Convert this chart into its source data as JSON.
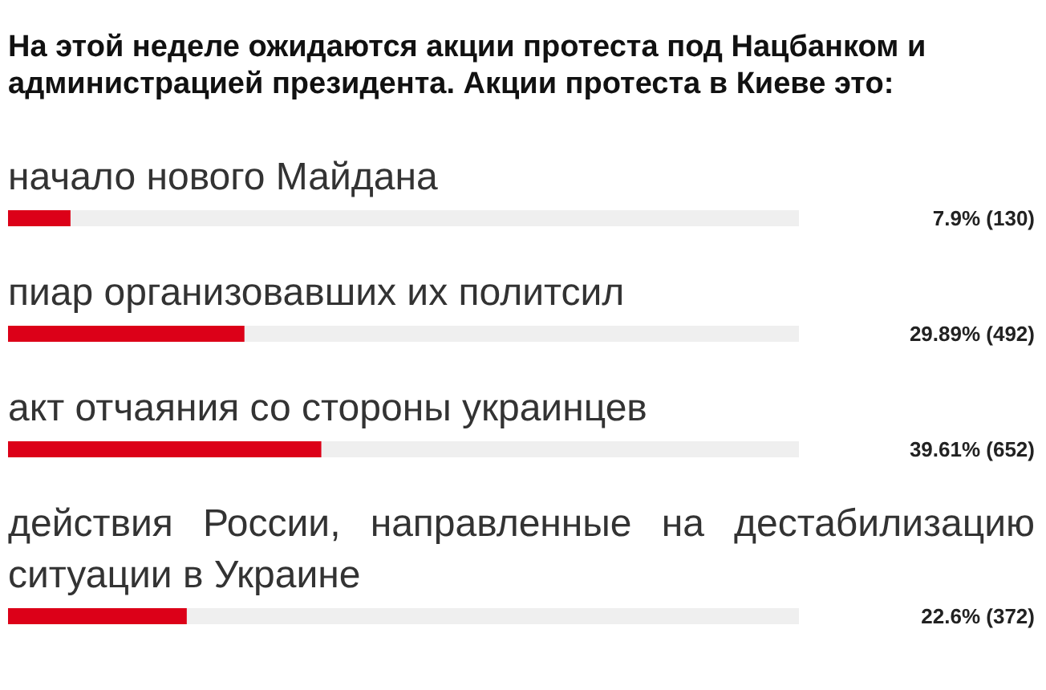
{
  "chart_data": {
    "type": "bar",
    "orientation": "horizontal",
    "title": "На этой неделе ожидаются акции протеста под Нацбанком и администрацией президента. Акции протеста в Киеве это:",
    "categories": [
      "начало нового Майдана",
      "пиар организовавших их политсил",
      "акт отчаяния со стороны украинцев",
      "действия России, направленные на дестабилизацию ситуации в Украине"
    ],
    "values": [
      7.9,
      29.89,
      39.61,
      22.6
    ],
    "value_labels": [
      "7.9% (130)",
      "29.89% (492)",
      "39.61% (652)",
      "22.6% (372)"
    ],
    "color": "#dc0018",
    "xlim": [
      0,
      100
    ],
    "tick_labels": false
  }
}
